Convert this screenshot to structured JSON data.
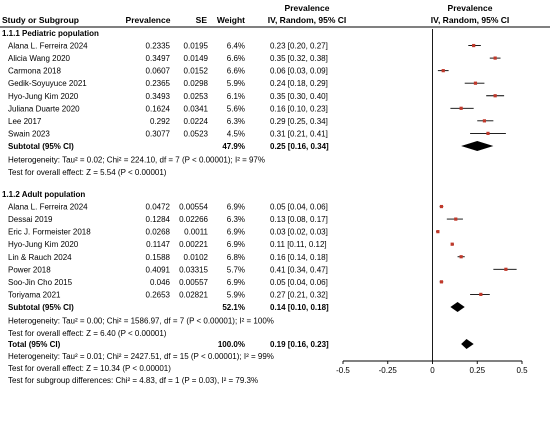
{
  "header": {
    "study": "Study or Subgroup",
    "prevalence": "Prevalence",
    "se": "SE",
    "weight": "Weight",
    "ci_top": "Prevalence",
    "ci_bottom": "IV, Random, 95% CI",
    "plot_top": "Prevalence",
    "plot_bottom": "IV, Random, 95% CI"
  },
  "chart_data": {
    "type": "forest",
    "xlim": [
      -0.5,
      0.5
    ],
    "ticks": [
      "-0.5",
      "-0.25",
      "0",
      "0.25",
      "0.5"
    ],
    "tick_values": [
      -0.5,
      -0.25,
      0,
      0.25,
      0.5
    ],
    "groups": [
      {
        "title": "1.1.1 Pediatric population",
        "studies": [
          {
            "name": "Alana L. Ferreira 2024",
            "prevalence": "0.2335",
            "se": "0.0195",
            "weight": "6.4%",
            "ci": "0.23 [0.20, 0.27]",
            "est": 0.23,
            "lo": 0.2,
            "hi": 0.27
          },
          {
            "name": "Alicia Wang 2020",
            "prevalence": "0.3497",
            "se": "0.0149",
            "weight": "6.6%",
            "ci": "0.35 [0.32, 0.38]",
            "est": 0.35,
            "lo": 0.32,
            "hi": 0.38
          },
          {
            "name": "Carmona 2018",
            "prevalence": "0.0607",
            "se": "0.0152",
            "weight": "6.6%",
            "ci": "0.06 [0.03, 0.09]",
            "est": 0.06,
            "lo": 0.03,
            "hi": 0.09
          },
          {
            "name": "Gedik-Soyuyuce 2021",
            "prevalence": "0.2365",
            "se": "0.0298",
            "weight": "5.9%",
            "ci": "0.24 [0.18, 0.29]",
            "est": 0.24,
            "lo": 0.18,
            "hi": 0.29
          },
          {
            "name": "Hyo-Jung Kim 2020",
            "prevalence": "0.3493",
            "se": "0.0253",
            "weight": "6.1%",
            "ci": "0.35 [0.30, 0.40]",
            "est": 0.35,
            "lo": 0.3,
            "hi": 0.4
          },
          {
            "name": "Juliana Duarte 2020",
            "prevalence": "0.1624",
            "se": "0.0341",
            "weight": "5.6%",
            "ci": "0.16 [0.10, 0.23]",
            "est": 0.16,
            "lo": 0.1,
            "hi": 0.23
          },
          {
            "name": "Lee 2017",
            "prevalence": "0.292",
            "se": "0.0224",
            "weight": "6.3%",
            "ci": "0.29 [0.25, 0.34]",
            "est": 0.29,
            "lo": 0.25,
            "hi": 0.34
          },
          {
            "name": "Swain 2023",
            "prevalence": "0.3077",
            "se": "0.0523",
            "weight": "4.5%",
            "ci": "0.31 [0.21, 0.41]",
            "est": 0.31,
            "lo": 0.21,
            "hi": 0.41
          }
        ],
        "subtotal": {
          "label": "Subtotal (95% CI)",
          "weight": "47.9%",
          "ci": "0.25 [0.16, 0.34]",
          "est": 0.25,
          "lo": 0.16,
          "hi": 0.34
        },
        "heterogeneity": "Heterogeneity: Tau² = 0.02; Chi² = 224.10, df = 7 (P < 0.00001); I² = 97%",
        "overall_test": "Test for overall effect: Z = 5.54 (P < 0.00001)"
      },
      {
        "title": "1.1.2 Adult population",
        "studies": [
          {
            "name": "Alana L. Ferreira 2024",
            "prevalence": "0.0472",
            "se": "0.00554",
            "weight": "6.9%",
            "ci": "0.05 [0.04, 0.06]",
            "est": 0.05,
            "lo": 0.04,
            "hi": 0.06
          },
          {
            "name": "Dessai 2019",
            "prevalence": "0.1284",
            "se": "0.02266",
            "weight": "6.3%",
            "ci": "0.13 [0.08, 0.17]",
            "est": 0.13,
            "lo": 0.08,
            "hi": 0.17
          },
          {
            "name": "Eric J. Formeister 2018",
            "prevalence": "0.0268",
            "se": "0.0011",
            "weight": "6.9%",
            "ci": "0.03 [0.02, 0.03]",
            "est": 0.03,
            "lo": 0.02,
            "hi": 0.03
          },
          {
            "name": "Hyo-Jung Kim 2020",
            "prevalence": "0.1147",
            "se": "0.00221",
            "weight": "6.9%",
            "ci": "0.11 [0.11, 0.12]",
            "est": 0.11,
            "lo": 0.11,
            "hi": 0.12
          },
          {
            "name": "Lin & Rauch 2024",
            "prevalence": "0.1588",
            "se": "0.0102",
            "weight": "6.8%",
            "ci": "0.16 [0.14, 0.18]",
            "est": 0.16,
            "lo": 0.14,
            "hi": 0.18
          },
          {
            "name": "Power 2018",
            "prevalence": "0.4091",
            "se": "0.03315",
            "weight": "5.7%",
            "ci": "0.41 [0.34, 0.47]",
            "est": 0.41,
            "lo": 0.34,
            "hi": 0.47
          },
          {
            "name": "Soo-Jin Cho 2015",
            "prevalence": "0.046",
            "se": "0.00557",
            "weight": "6.9%",
            "ci": "0.05 [0.04, 0.06]",
            "est": 0.05,
            "lo": 0.04,
            "hi": 0.06
          },
          {
            "name": "Toriyama 2021",
            "prevalence": "0.2653",
            "se": "0.02821",
            "weight": "5.9%",
            "ci": "0.27 [0.21, 0.32]",
            "est": 0.27,
            "lo": 0.21,
            "hi": 0.32
          }
        ],
        "subtotal": {
          "label": "Subtotal (95% CI)",
          "weight": "52.1%",
          "ci": "0.14 [0.10, 0.18]",
          "est": 0.14,
          "lo": 0.1,
          "hi": 0.18
        },
        "heterogeneity": "Heterogeneity: Tau² = 0.00; Chi² = 1586.97, df = 7 (P < 0.00001); I² = 100%",
        "overall_test": "Test for overall effect: Z = 6.40 (P < 0.00001)"
      }
    ],
    "total": {
      "label": "Total (95% CI)",
      "weight": "100.0%",
      "ci": "0.19 [0.16, 0.23]",
      "est": 0.19,
      "lo": 0.16,
      "hi": 0.23
    },
    "total_heterogeneity": "Heterogeneity: Tau² = 0.01; Chi² = 2427.51, df = 15 (P < 0.00001); I² = 99%",
    "total_overall_test": "Test for overall effect: Z = 10.34 (P < 0.00001)",
    "subgroup_test": "Test for subgroup differences: Chi² = 4.83, df = 1 (P = 0.03), I² = 79.3%"
  },
  "colors": {
    "marker": "#c0392b",
    "diamond": "#000000",
    "line": "#000000"
  }
}
